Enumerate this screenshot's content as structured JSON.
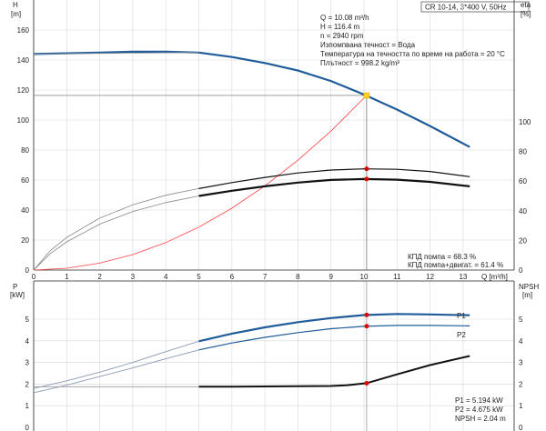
{
  "header": {
    "product_label": "CR 10-14, 3*400 V, 50Hz"
  },
  "top_chart": {
    "left_axis": {
      "name": "H",
      "unit": "[m]",
      "ticks": [
        "0",
        "20",
        "40",
        "60",
        "80",
        "100",
        "120",
        "140",
        "160"
      ]
    },
    "right_axis": {
      "name": "eta",
      "unit": "[%]",
      "ticks": [
        "0",
        "20",
        "40",
        "60",
        "80",
        "100"
      ]
    },
    "x_axis": {
      "label": "Q [m³/h]",
      "ticks": [
        "0",
        "1",
        "2",
        "3",
        "4",
        "5",
        "6",
        "7",
        "8",
        "9",
        "10",
        "11",
        "12",
        "13"
      ]
    },
    "info_lines": [
      "Q = 10.08 m³/h",
      "H = 116.4 m",
      "n = 2940 rpm",
      "Изпомпвана течност = Вода",
      "Температура на течността по време на работа = 20 °C",
      "Плътност = 998.2 kg/m³"
    ],
    "efficiency_lines": [
      "КПД помпа = 68.3 %",
      "КПД помпа+двигат. = 61.4 %"
    ]
  },
  "bottom_chart": {
    "left_axis": {
      "name": "P",
      "unit": "[kW]",
      "ticks": [
        "0",
        "1",
        "2",
        "3",
        "4",
        "5"
      ]
    },
    "right_axis": {
      "name": "NPSH",
      "unit": "[m]",
      "ticks": [
        "0",
        "1",
        "2",
        "3",
        "4",
        "5"
      ]
    },
    "series_labels": {
      "p1": "P1",
      "p2": "P2"
    },
    "info_lines": [
      "P1 = 5.194 kW",
      "P2 = 4.675 kW",
      "NPSH = 2.04 m"
    ]
  },
  "colors": {
    "pump_curve": "#1f5c99",
    "system_curve": "#ff4040",
    "efficiency": "#111111",
    "power": "#1f5c99",
    "marker": "#e00000",
    "duty_marker": "#ffcc33"
  },
  "chart_data": [
    {
      "type": "line",
      "xlabel": "Q [m³/h]",
      "ylabel": "H [m]",
      "y2label": "eta [%]",
      "xlim": [
        0,
        14
      ],
      "ylim": [
        0,
        180
      ],
      "y2lim": [
        0,
        180
      ],
      "series": [
        {
          "key": "head",
          "axis": "left",
          "x": [
            0,
            1,
            2,
            3,
            4,
            5,
            6,
            7,
            8,
            9,
            10,
            11,
            12,
            13.2
          ],
          "y": [
            144,
            144.5,
            145,
            145.5,
            145.5,
            145,
            142,
            138,
            133,
            126,
            117,
            107,
            96,
            82
          ]
        },
        {
          "key": "head_extended",
          "axis": "left",
          "x": [
            0,
            5
          ],
          "y": [
            144,
            145
          ]
        },
        {
          "key": "system",
          "axis": "left",
          "x": [
            0,
            1,
            2,
            3,
            4,
            5,
            6,
            7,
            8,
            9,
            10.08
          ],
          "y": [
            0,
            1.2,
            4.6,
            10.3,
            18.3,
            28.6,
            41.2,
            56.1,
            73.2,
            92.6,
            116.4
          ]
        },
        {
          "key": "eta_pump",
          "axis": "right",
          "x": [
            5,
            6,
            7,
            8,
            9,
            10,
            11,
            12,
            13.2
          ],
          "y": [
            55,
            59,
            62.5,
            65.5,
            67.5,
            68.3,
            68,
            66.5,
            63
          ]
        },
        {
          "key": "eta_pump_motor",
          "axis": "right",
          "x": [
            5,
            6,
            7,
            8,
            9,
            10,
            11,
            12,
            13.2
          ],
          "y": [
            50,
            53.5,
            56.5,
            59,
            60.8,
            61.4,
            61,
            59.5,
            56.5
          ]
        },
        {
          "key": "eta_pump_ext",
          "axis": "right",
          "x": [
            0,
            0.5,
            1,
            2,
            3,
            4,
            5
          ],
          "y": [
            0,
            13,
            22,
            35,
            44,
            50.5,
            55
          ]
        },
        {
          "key": "eta_total_ext",
          "axis": "right",
          "x": [
            0,
            0.5,
            1,
            2,
            3,
            4,
            5
          ],
          "y": [
            0,
            11,
            19,
            31,
            39.5,
            45.5,
            50
          ]
        }
      ],
      "markers": [
        {
          "x": 10.08,
          "y": 116.4,
          "axis": "left"
        },
        {
          "x": 10.08,
          "y": 68.3,
          "axis": "right"
        },
        {
          "x": 10.08,
          "y": 61.4,
          "axis": "right"
        }
      ],
      "duty_point": {
        "x": 10.08,
        "y": 116.4
      }
    },
    {
      "type": "line",
      "xlabel": "Q [m³/h]",
      "ylabel": "P [kW]",
      "y2label": "NPSH [m]",
      "xlim": [
        0,
        14
      ],
      "ylim": [
        0,
        6
      ],
      "y2lim": [
        0,
        6
      ],
      "series": [
        {
          "key": "P1",
          "axis": "left",
          "x": [
            5,
            6,
            7,
            8,
            9,
            10,
            11,
            12,
            13.2
          ],
          "y": [
            3.98,
            4.33,
            4.62,
            4.86,
            5.05,
            5.19,
            5.24,
            5.22,
            5.18
          ]
        },
        {
          "key": "P2",
          "axis": "left",
          "x": [
            5,
            6,
            7,
            8,
            9,
            10,
            11,
            12,
            13.2
          ],
          "y": [
            3.58,
            3.9,
            4.16,
            4.38,
            4.56,
            4.67,
            4.71,
            4.71,
            4.69
          ]
        },
        {
          "key": "P1_ext",
          "axis": "left",
          "x": [
            0,
            1,
            2,
            3,
            4,
            5
          ],
          "y": [
            1.8,
            2.15,
            2.55,
            3.0,
            3.5,
            3.98
          ]
        },
        {
          "key": "P2_ext",
          "axis": "left",
          "x": [
            0,
            1,
            2,
            3,
            4,
            5
          ],
          "y": [
            1.6,
            1.95,
            2.35,
            2.75,
            3.17,
            3.58
          ]
        },
        {
          "key": "NPSH",
          "axis": "right",
          "x": [
            5,
            6,
            7,
            8,
            9,
            9.5,
            10.08,
            11,
            12,
            13.2
          ],
          "y": [
            1.88,
            1.88,
            1.89,
            1.9,
            1.91,
            1.95,
            2.04,
            2.45,
            2.88,
            3.3
          ]
        },
        {
          "key": "NPSH_ext",
          "axis": "right",
          "x": [
            0,
            5
          ],
          "y": [
            1.88,
            1.88
          ]
        }
      ],
      "markers": [
        {
          "x": 10.08,
          "y": 5.194,
          "axis": "left"
        },
        {
          "x": 10.08,
          "y": 4.675,
          "axis": "left"
        },
        {
          "x": 10.08,
          "y": 2.04,
          "axis": "right"
        }
      ]
    }
  ]
}
